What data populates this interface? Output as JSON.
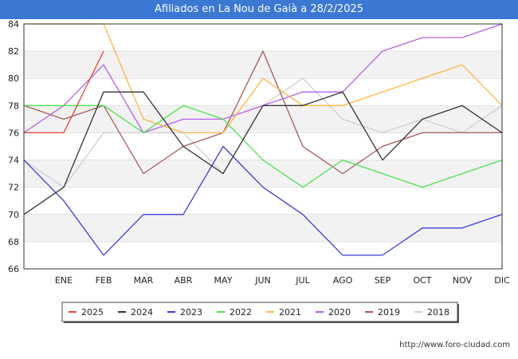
{
  "chart_data": {
    "type": "line",
    "title": "Afiliados en La Nou de Gaià a 28/2/2025",
    "xlabel": "",
    "ylabel": "",
    "categories": [
      "",
      "ENE",
      "FEB",
      "MAR",
      "ABR",
      "MAY",
      "JUN",
      "JUL",
      "AGO",
      "SEP",
      "OCT",
      "NOV",
      "DIC"
    ],
    "ylim": [
      66,
      84
    ],
    "yticks": [
      66,
      68,
      70,
      72,
      74,
      76,
      78,
      80,
      82,
      84
    ],
    "grid": "horizontal bands",
    "legend_position": "bottom",
    "series": [
      {
        "name": "2025",
        "color": "#e8413c",
        "values": [
          76,
          76,
          82,
          null,
          null,
          null,
          null,
          null,
          null,
          null,
          null,
          null,
          null
        ]
      },
      {
        "name": "2024",
        "color": "#333333",
        "values": [
          70,
          72,
          79,
          79,
          75,
          73,
          78,
          78,
          79,
          74,
          77,
          78,
          76
        ]
      },
      {
        "name": "2023",
        "color": "#3b3bdb",
        "values": [
          74,
          71,
          67,
          70,
          70,
          75,
          72,
          70,
          67,
          67,
          69,
          69,
          70
        ]
      },
      {
        "name": "2022",
        "color": "#4ce24c",
        "values": [
          78,
          78,
          78,
          76,
          78,
          77,
          74,
          72,
          74,
          73,
          72,
          73,
          74
        ]
      },
      {
        "name": "2021",
        "color": "#ffb443",
        "values": [
          84,
          84,
          84,
          77,
          76,
          76,
          80,
          78,
          78,
          79,
          80,
          81,
          78
        ]
      },
      {
        "name": "2020",
        "color": "#b561e8",
        "values": [
          76,
          78,
          81,
          76,
          77,
          77,
          78,
          79,
          79,
          82,
          83,
          83,
          84
        ]
      },
      {
        "name": "2019",
        "color": "#a85a5a",
        "values": [
          78,
          77,
          78,
          73,
          75,
          76,
          82,
          75,
          73,
          75,
          76,
          76,
          76
        ]
      },
      {
        "name": "2018",
        "color": "#cfcfcf",
        "values": [
          74,
          72,
          76,
          76,
          76,
          73,
          78,
          80,
          77,
          76,
          77,
          76,
          78
        ]
      }
    ]
  },
  "footer": {
    "url": "http://www.foro-ciudad.com"
  }
}
